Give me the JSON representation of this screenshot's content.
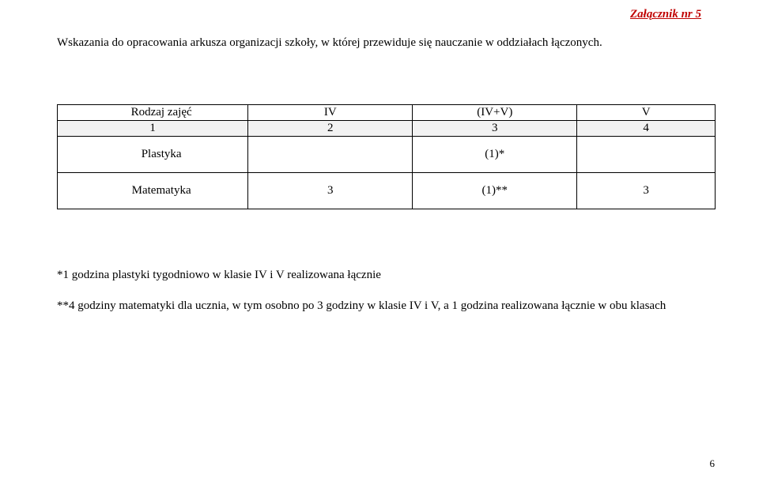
{
  "attachment_label": "Załącznik nr 5",
  "heading": "Wskazania do opracowania arkusza organizacji szkoły, w której przewiduje się nauczanie w oddziałach łączonych.",
  "table": {
    "header": {
      "subject": "Rodzaj zajęć",
      "iv": "IV",
      "iv_v": "(IV+V)",
      "v": "V"
    },
    "num_row": {
      "subject": "1",
      "iv": "2",
      "iv_v": "3",
      "v": "4"
    },
    "plastyka": {
      "subject": "Plastyka",
      "iv": "",
      "iv_v": "(1)*",
      "v": ""
    },
    "math": {
      "subject": "Matematyka",
      "iv": "3",
      "iv_v": "(1)**",
      "v": "3"
    }
  },
  "footnote1": "*1 godzina plastyki  tygodniowo w klasie IV i V realizowana łącznie",
  "footnote2": "**4 godziny matematyki dla ucznia, w tym osobno po 3 godziny w klasie IV i V, a 1 godzina realizowana łącznie w obu klasach",
  "page_number": "6"
}
